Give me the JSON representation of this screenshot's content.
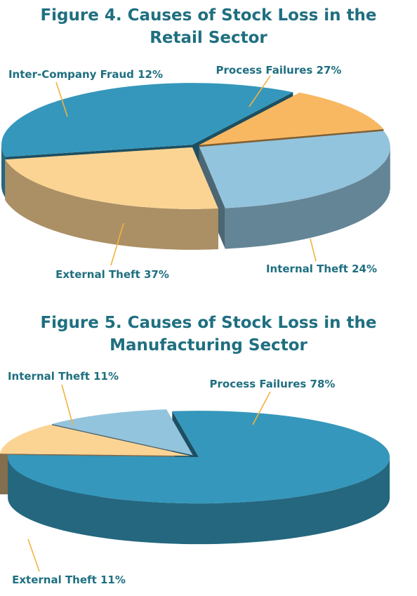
{
  "chart_data": [
    {
      "type": "pie",
      "title_lines": [
        "Figure 4. Causes of Stock Loss in the",
        "Retail Sector"
      ],
      "slices": [
        {
          "label": "Process Failures 27%",
          "value": 27,
          "color": "#93c4dd"
        },
        {
          "label": "Internal Theft 24%",
          "value": 24,
          "color": "#fbd494"
        },
        {
          "label": "External Theft 37%",
          "value": 37,
          "color": "#3597bb"
        },
        {
          "label": "Inter-Company Fraud 12%",
          "value": 12,
          "color": "#f8b862"
        }
      ]
    },
    {
      "type": "pie",
      "title_lines": [
        "Figure 5. Causes of Stock Loss in the",
        "Manufacturing Sector"
      ],
      "slices": [
        {
          "label": "Process Failures 78%",
          "value": 78,
          "color": "#3597bb"
        },
        {
          "label": "External Theft 11%",
          "value": 11,
          "color": "#fbd494"
        },
        {
          "label": "Internal Theft 11%",
          "value": 11,
          "color": "#93c4dd"
        }
      ]
    }
  ]
}
